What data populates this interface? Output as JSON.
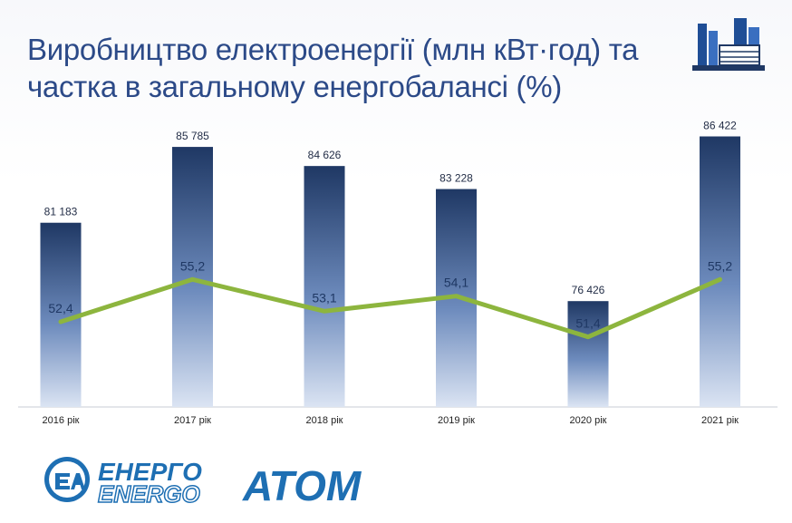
{
  "title_line1": "Виробництво електроенергії (млн кВт·год) та",
  "title_line2": "частка в загальному енергобалансі (%)",
  "logo": {
    "text_top": "ЕНЕРГО",
    "text_bottom": "ENERGO",
    "text_main": "АТОМ"
  },
  "colors": {
    "title": "#2c4a88",
    "bar_top": "#1f3864",
    "bar_bottom": "#dbe4f3",
    "line": "#8db53e",
    "logo_blue": "#1e6fb3"
  },
  "chart_data": {
    "type": "bar",
    "categories": [
      "2016 рік",
      "2017 рік",
      "2018 рік",
      "2019 рік",
      "2020 рік",
      "2021 рік"
    ],
    "series": [
      {
        "values": [
          81183,
          85785,
          84626,
          83228,
          76426,
          86422
        ],
        "labels": [
          "81 183",
          "85 785",
          "84 626",
          "83 228",
          "76 426",
          "86 422"
        ]
      },
      {
        "type": "line",
        "values": [
          52.4,
          55.2,
          53.1,
          54.1,
          51.4,
          55.2
        ],
        "labels": [
          "52,4",
          "55,2",
          "53,1",
          "54,1",
          "51,4",
          "55,2"
        ]
      }
    ],
    "bar_axis_range": [
      70000,
      88000
    ],
    "line_axis_range": [
      48,
      58
    ],
    "grid": false,
    "legend": "none"
  }
}
